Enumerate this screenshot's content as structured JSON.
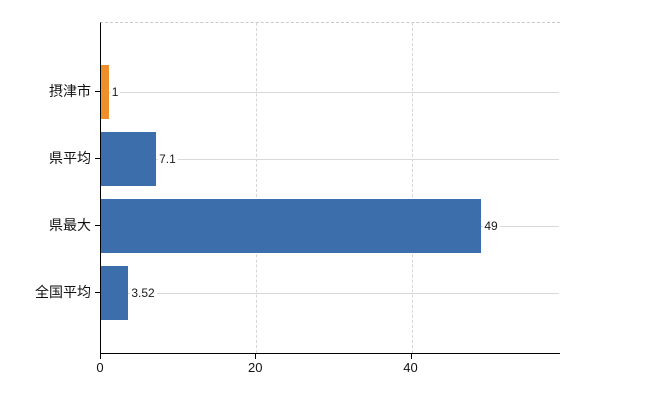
{
  "chart_data": {
    "type": "bar",
    "orientation": "horizontal",
    "title": "",
    "xlabel": "",
    "ylabel": "",
    "categories": [
      "摂津市",
      "県平均",
      "県最大",
      "全国平均"
    ],
    "values": [
      1,
      7.1,
      49,
      3.52
    ],
    "value_labels": [
      "1",
      "7.1",
      "49",
      "3.52"
    ],
    "bar_colors": [
      "#ee8f2c",
      "#3d6eac",
      "#3d6eac",
      "#3d6eac"
    ],
    "highlight_category": "摂津市",
    "xlim": [
      0,
      59
    ],
    "x_ticks": [
      "0",
      "20",
      "40"
    ],
    "x_tick_values": [
      0,
      20,
      40
    ],
    "grid": true,
    "legend_position": "none"
  },
  "colors": {
    "bar_primary": "#3d6eac",
    "bar_highlight": "#ee8f2c",
    "axis": "#000000",
    "gridline_horizontal": "#d9d9d9",
    "gridline_vertical": "#d6d6d6",
    "plot_top_border": "#c9c9c9",
    "background": "#ffffff",
    "text": "#111111"
  }
}
